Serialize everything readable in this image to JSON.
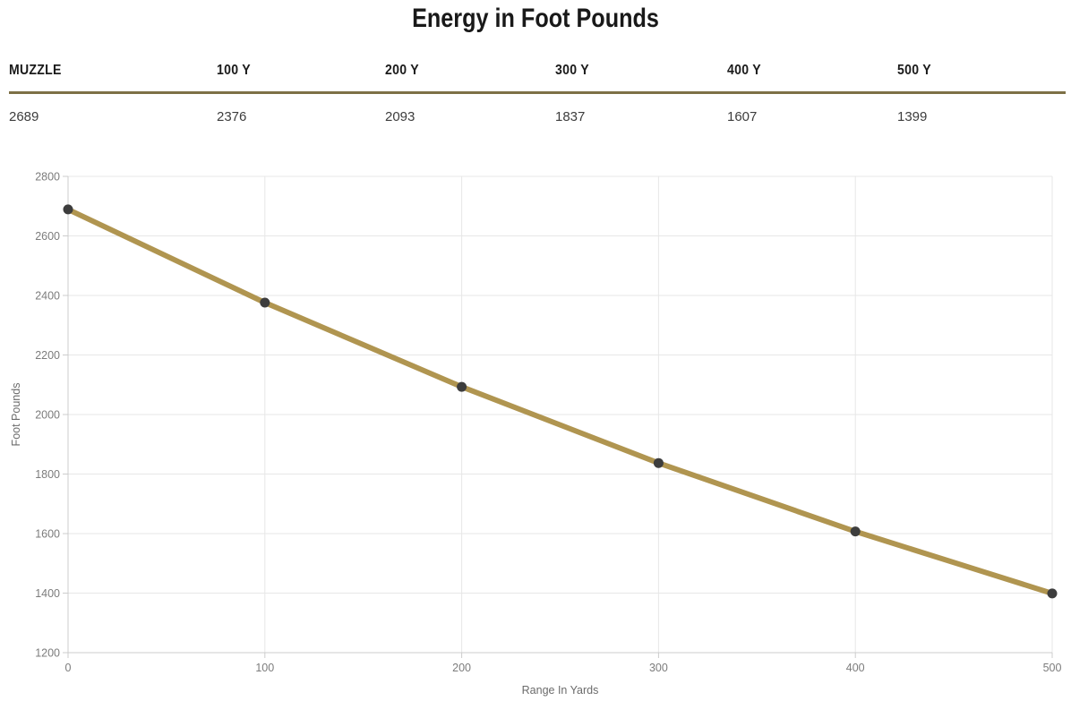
{
  "table": {
    "headers": [
      "MUZZLE",
      "100 Y",
      "200 Y",
      "300 Y",
      "400 Y",
      "500 Y"
    ],
    "values": [
      "2689",
      "2376",
      "2093",
      "1837",
      "1607",
      "1399"
    ]
  },
  "chart_data": {
    "type": "line",
    "title": "Energy in Foot Pounds",
    "x": [
      0,
      100,
      200,
      300,
      400,
      500
    ],
    "values": [
      2689,
      2376,
      2093,
      1837,
      1607,
      1399
    ],
    "xlabel": "Range In Yards",
    "ylabel": "Foot Pounds",
    "xlim": [
      0,
      500
    ],
    "ylim": [
      1200,
      2800
    ],
    "x_ticks": [
      0,
      100,
      200,
      300,
      400,
      500
    ],
    "y_ticks": [
      1200,
      1400,
      1600,
      1800,
      2000,
      2200,
      2400,
      2600,
      2800
    ],
    "grid": true,
    "legend": "none",
    "colors": {
      "line": "#b09550",
      "marker": "#3d3d3d",
      "grid": "#e7e7e7",
      "axis": "#cccccc",
      "tick_label": "#7c7c7c",
      "axis_title": "#6b6b6b",
      "table_rule": "#7d7046"
    }
  }
}
